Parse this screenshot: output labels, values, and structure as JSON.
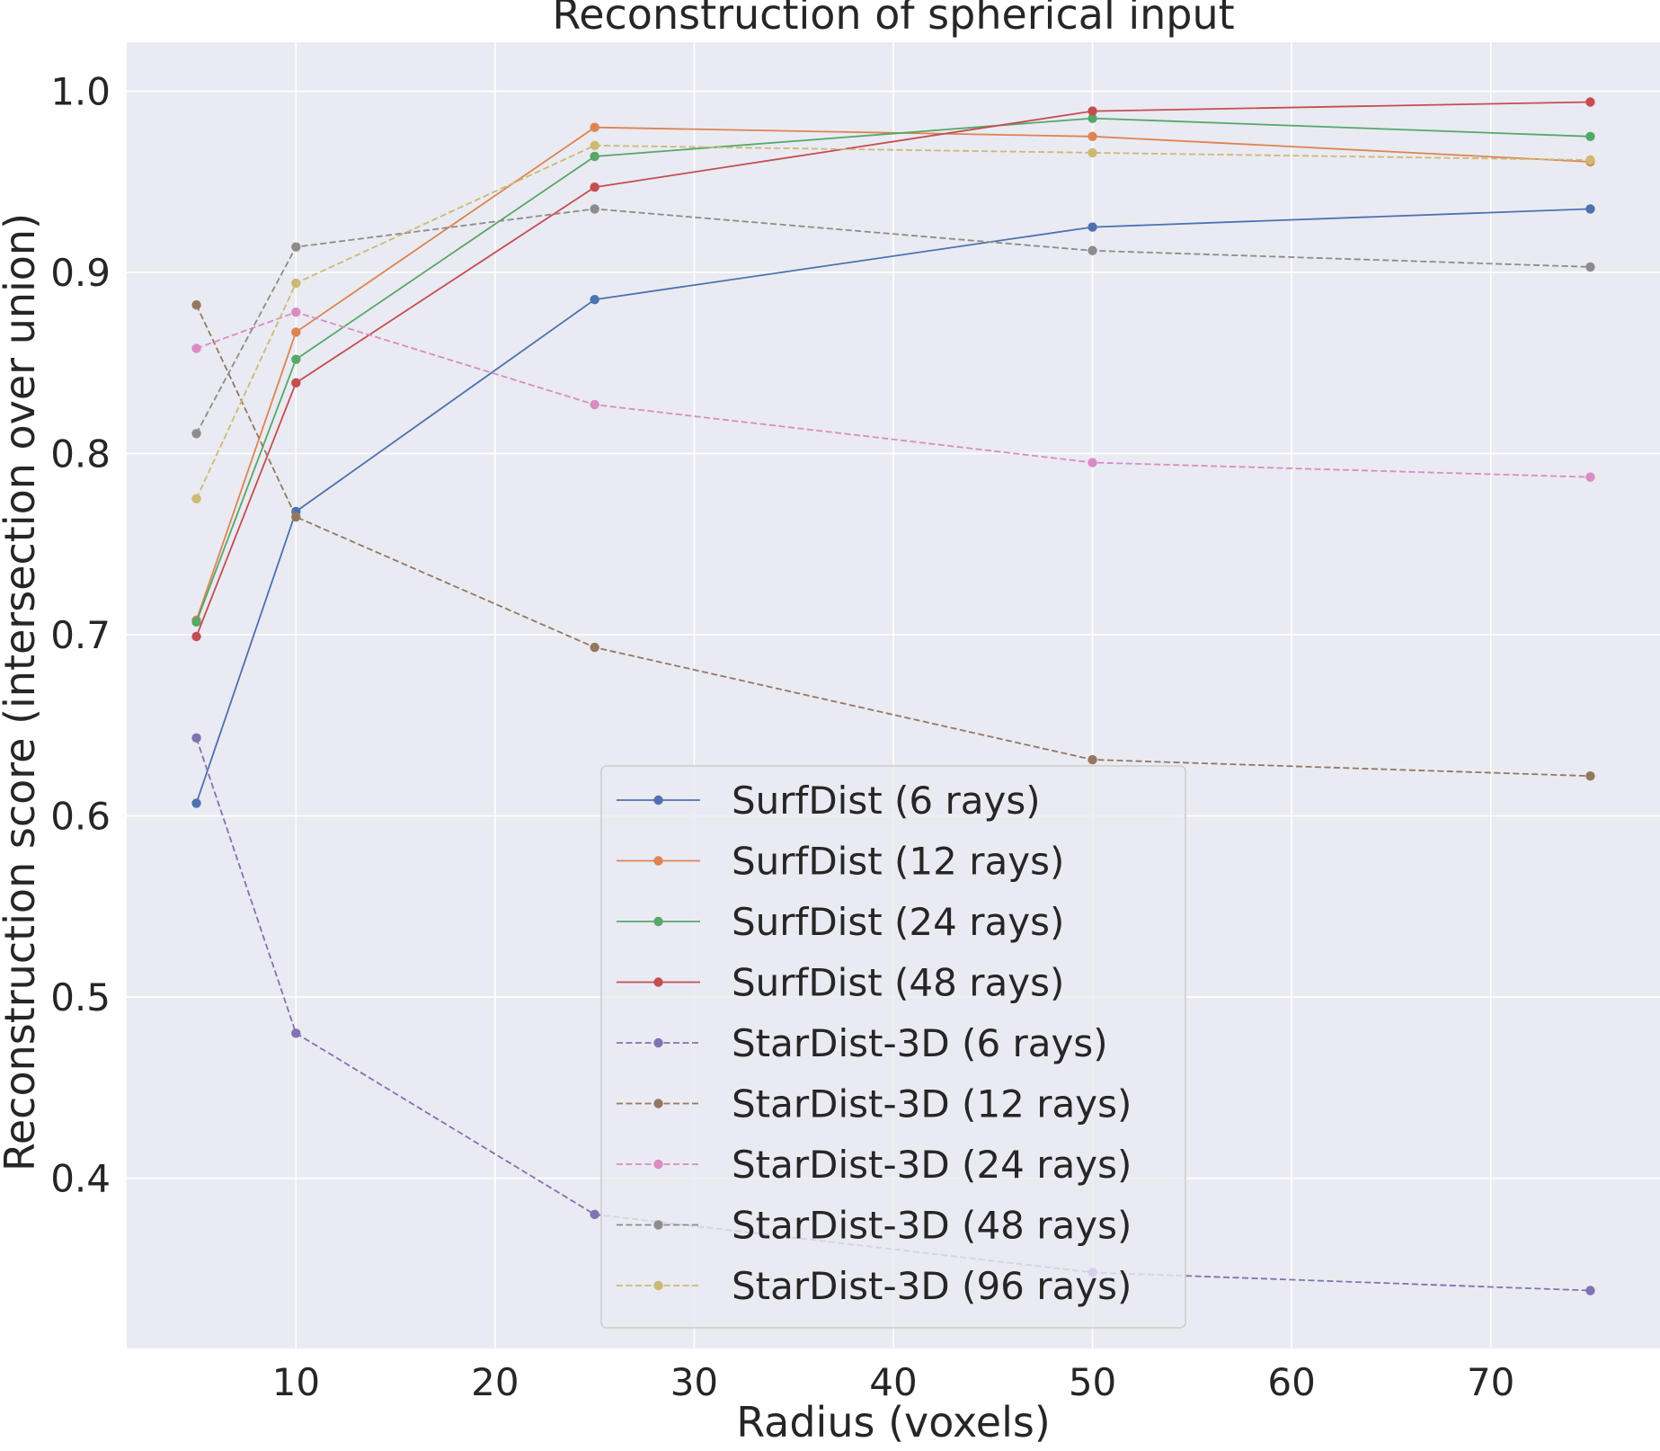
{
  "chart_data": {
    "type": "line",
    "title": "Reconstruction of spherical input",
    "xlabel": "Radius (voxels)",
    "ylabel": "Reconstruction score (intersection over union)",
    "xlim": [
      1.5,
      78.5
    ],
    "ylim": [
      0.306,
      1.027
    ],
    "x_ticks": [
      10,
      20,
      30,
      40,
      50,
      60,
      70
    ],
    "y_ticks": [
      0.4,
      0.5,
      0.6,
      0.7,
      0.8,
      0.9,
      1.0
    ],
    "x_tick_labels": [
      "10",
      "20",
      "30",
      "40",
      "50",
      "60",
      "70"
    ],
    "y_tick_labels": [
      "0.4",
      "0.5",
      "0.6",
      "0.7",
      "0.8",
      "0.9",
      "1.0"
    ],
    "grid": true,
    "legend_position": "lower-center",
    "x": [
      5,
      10,
      25,
      50,
      75
    ],
    "series": [
      {
        "name": "SurfDist (6 rays)",
        "color": "#4c72b0",
        "dashed": false,
        "values": [
          0.607,
          0.768,
          0.885,
          0.925,
          0.935
        ]
      },
      {
        "name": "SurfDist (12 rays)",
        "color": "#dd8452",
        "dashed": false,
        "values": [
          0.708,
          0.867,
          0.98,
          0.975,
          0.961
        ]
      },
      {
        "name": "SurfDist (24 rays)",
        "color": "#55a868",
        "dashed": false,
        "values": [
          0.707,
          0.852,
          0.964,
          0.985,
          0.975
        ]
      },
      {
        "name": "SurfDist (48 rays)",
        "color": "#c44e52",
        "dashed": false,
        "values": [
          0.699,
          0.839,
          0.947,
          0.989,
          0.994
        ]
      },
      {
        "name": "StarDist-3D (6 rays)",
        "color": "#8172b3",
        "dashed": true,
        "values": [
          0.643,
          0.48,
          0.38,
          0.348,
          0.338
        ]
      },
      {
        "name": "StarDist-3D (12 rays)",
        "color": "#937860",
        "dashed": true,
        "values": [
          0.882,
          0.765,
          0.693,
          0.631,
          0.622
        ]
      },
      {
        "name": "StarDist-3D (24 rays)",
        "color": "#da8bc3",
        "dashed": true,
        "values": [
          0.858,
          0.878,
          0.827,
          0.795,
          0.787
        ]
      },
      {
        "name": "StarDist-3D (48 rays)",
        "color": "#8c8c8c",
        "dashed": true,
        "values": [
          0.811,
          0.914,
          0.935,
          0.912,
          0.903
        ]
      },
      {
        "name": "StarDist-3D (96 rays)",
        "color": "#ccb974",
        "dashed": true,
        "values": [
          0.775,
          0.894,
          0.97,
          0.966,
          0.962
        ]
      }
    ],
    "colors": {
      "plot_background": "#eaeaf2",
      "grid": "#ffffff",
      "legend_background": "#eaeaf2",
      "legend_border": "#cccccc"
    }
  }
}
